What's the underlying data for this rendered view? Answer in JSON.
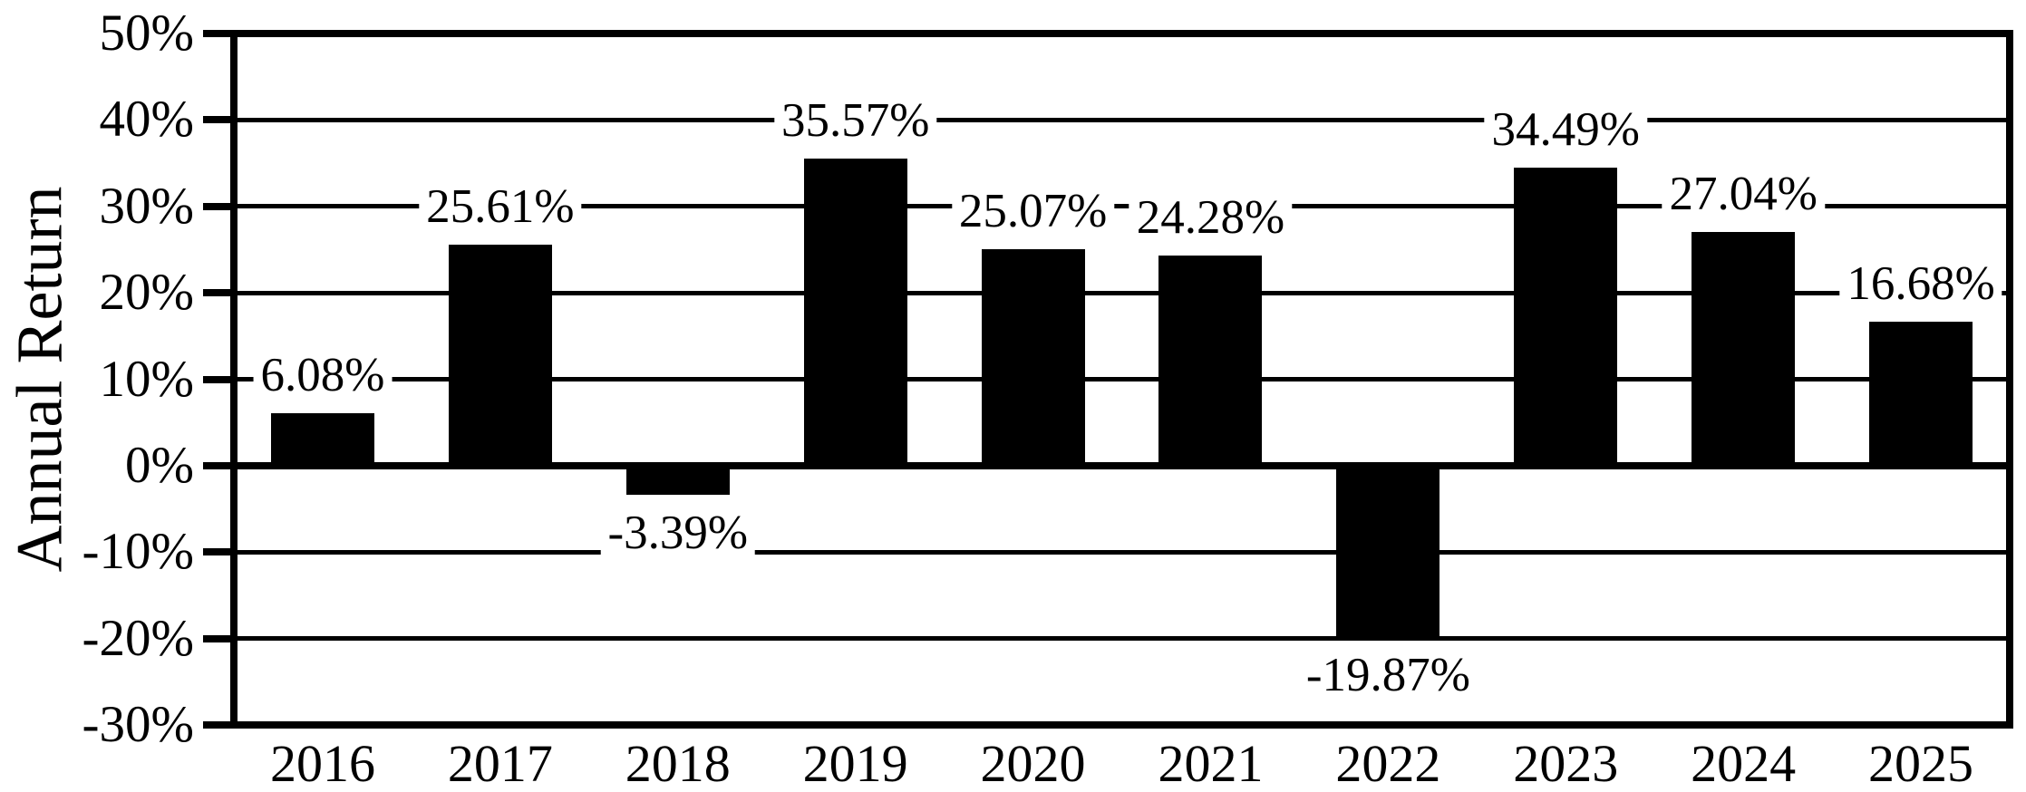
{
  "figure": {
    "background": "#ffffff",
    "foreground": "#000000"
  },
  "chart_data": {
    "type": "bar",
    "title": "",
    "xlabel": "",
    "ylabel": "Annual Return",
    "categories": [
      "2016",
      "2017",
      "2018",
      "2019",
      "2020",
      "2021",
      "2022",
      "2023",
      "2024",
      "2025"
    ],
    "values": [
      6.08,
      25.61,
      -3.39,
      35.57,
      25.07,
      24.28,
      -19.87,
      34.49,
      27.04,
      16.68
    ],
    "value_labels": [
      "6.08%",
      "25.61%",
      "-3.39%",
      "35.57%",
      "25.07%",
      "24.28%",
      "-19.87%",
      "34.49%",
      "27.04%",
      "16.68%"
    ],
    "ylim": [
      -30,
      50
    ],
    "ytick_step": 10,
    "ytick_labels": [
      "50%",
      "40%",
      "30%",
      "20%",
      "10%",
      "0%",
      "-10%",
      "-20%",
      "-30%"
    ],
    "grid": true,
    "legend": "none",
    "bar_color": "#000000"
  }
}
